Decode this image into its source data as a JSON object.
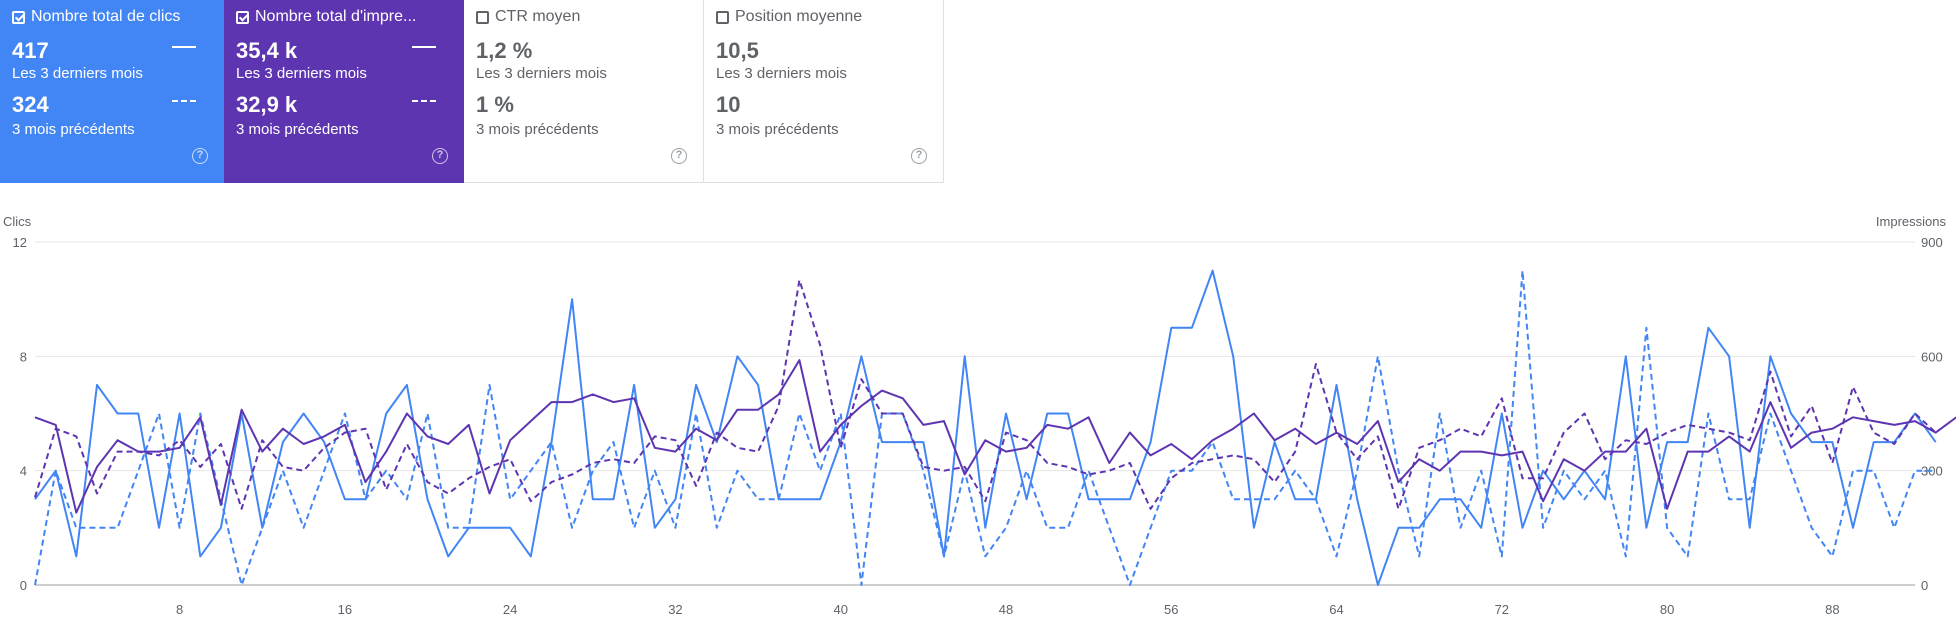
{
  "cards": [
    {
      "name": "Nombre total de clics",
      "checked": true,
      "value_current": "417",
      "label_current": "Les 3 derniers mois",
      "value_previous": "324",
      "label_previous": "3 mois précédents",
      "color": "#4285f4"
    },
    {
      "name": "Nombre total d'impre...",
      "checked": true,
      "value_current": "35,4 k",
      "label_current": "Les 3 derniers mois",
      "value_previous": "32,9 k",
      "label_previous": "3 mois précédents",
      "color": "#5e35b1"
    },
    {
      "name": "CTR moyen",
      "checked": false,
      "value_current": "1,2 %",
      "label_current": "Les 3 derniers mois",
      "value_previous": "1 %",
      "label_previous": "3 mois précédents"
    },
    {
      "name": "Position moyenne",
      "checked": false,
      "value_current": "10,5",
      "label_current": "Les 3 derniers mois",
      "value_previous": "10",
      "label_previous": "3 mois précédents"
    }
  ],
  "help_icon": "question-circle-icon",
  "chart_data": {
    "type": "line",
    "left_axis": {
      "title": "Clics",
      "min": 0,
      "max": 12,
      "ticks": [
        0,
        4,
        8,
        12
      ]
    },
    "right_axis": {
      "title": "Impressions",
      "min": 0,
      "max": 900,
      "ticks": [
        0,
        300,
        600,
        900
      ]
    },
    "x_ticks": [
      8,
      16,
      24,
      32,
      40,
      48,
      56,
      64,
      72,
      80,
      88
    ],
    "x_range": [
      1,
      92
    ],
    "grid": true,
    "series": [
      {
        "style": "solid",
        "axis": "left",
        "color": "#4285f4",
        "values": [
          3,
          4,
          1,
          7,
          6,
          6,
          2,
          6,
          1,
          2,
          6,
          2,
          5,
          6,
          5,
          3,
          3,
          6,
          7,
          3,
          1,
          2,
          2,
          2,
          1,
          5,
          10,
          3,
          3,
          7,
          2,
          3,
          7,
          5,
          8,
          7,
          3,
          3,
          3,
          5,
          8,
          5,
          5,
          5,
          1,
          8,
          2,
          6,
          3,
          6,
          6,
          3,
          3,
          3,
          5,
          9,
          9,
          11,
          8,
          2,
          5,
          3,
          3,
          7,
          3,
          0,
          2,
          2,
          3,
          3,
          2,
          6,
          2,
          4,
          3,
          4,
          3,
          8,
          2,
          5,
          5,
          9,
          8,
          2,
          8,
          6,
          5,
          5,
          2,
          5,
          5,
          6,
          5
        ]
      },
      {
        "style": "dashed",
        "axis": "left",
        "color": "#4285f4",
        "values": [
          0,
          4,
          2,
          2,
          2,
          4,
          6,
          2,
          6,
          3,
          0,
          2,
          4,
          2,
          4,
          6,
          3,
          4,
          3,
          6,
          2,
          2,
          7,
          3,
          4,
          5,
          2,
          4,
          5,
          2,
          4,
          2,
          6,
          2,
          4,
          3,
          3,
          6,
          4,
          6,
          0,
          6,
          6,
          4,
          1,
          4,
          1,
          2,
          4,
          2,
          2,
          4,
          2,
          0,
          2,
          4,
          4,
          5,
          3,
          3,
          3,
          4,
          3,
          1,
          4,
          8,
          4,
          1,
          6,
          2,
          4,
          1,
          11,
          2,
          4,
          3,
          4,
          1,
          9,
          2,
          1,
          6,
          3,
          3,
          6,
          4,
          2,
          1,
          4,
          4,
          2,
          4,
          4
        ]
      },
      {
        "style": "solid",
        "axis": "right",
        "color": "#5e35b1",
        "values": [
          440,
          420,
          190,
          310,
          380,
          350,
          350,
          360,
          440,
          210,
          460,
          350,
          410,
          370,
          390,
          420,
          270,
          350,
          450,
          390,
          370,
          420,
          240,
          380,
          430,
          480,
          480,
          500,
          480,
          490,
          360,
          350,
          410,
          380,
          460,
          460,
          500,
          590,
          350,
          420,
          470,
          510,
          490,
          420,
          430,
          290,
          380,
          350,
          360,
          420,
          410,
          440,
          320,
          400,
          340,
          370,
          330,
          380,
          410,
          450,
          380,
          410,
          370,
          400,
          370,
          430,
          270,
          330,
          300,
          350,
          350,
          340,
          350,
          220,
          330,
          300,
          350,
          350,
          410,
          200,
          350,
          350,
          390,
          350,
          480,
          360,
          400,
          410,
          440,
          430,
          420,
          430,
          400,
          440
        ]
      },
      {
        "style": "dashed",
        "axis": "right",
        "color": "#5e35b1",
        "values": [
          230,
          410,
          390,
          240,
          350,
          350,
          340,
          380,
          310,
          370,
          200,
          380,
          310,
          300,
          360,
          400,
          410,
          250,
          370,
          270,
          240,
          280,
          310,
          330,
          220,
          270,
          290,
          320,
          330,
          320,
          390,
          380,
          260,
          400,
          360,
          350,
          470,
          800,
          630,
          360,
          540,
          450,
          450,
          310,
          300,
          310,
          220,
          400,
          380,
          320,
          310,
          290,
          300,
          320,
          200,
          280,
          320,
          330,
          340,
          330,
          270,
          350,
          580,
          400,
          330,
          390,
          200,
          360,
          380,
          410,
          390,
          490,
          280,
          280,
          400,
          450,
          330,
          380,
          370,
          400,
          420,
          410,
          400,
          380,
          560,
          390,
          470,
          320,
          520,
          400,
          370,
          450,
          400
        ]
      }
    ]
  }
}
